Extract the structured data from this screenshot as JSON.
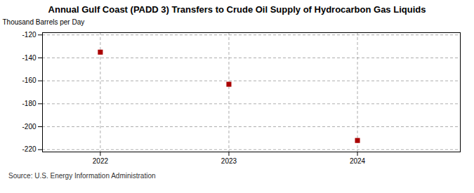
{
  "chart_data": {
    "type": "scatter",
    "title": "Annual Gulf Coast (PADD 3) Transfers to Crude Oil Supply of Hydrocarbon Gas Liquids",
    "ylabel": "Thousand Barrels per Day",
    "source": "Source: U.S. Energy Information Administration",
    "x": [
      2022,
      2023,
      2024
    ],
    "values": [
      -135,
      -163,
      -212
    ],
    "color": "#aa0000",
    "marker": "square",
    "xlim": [
      2021.55,
      2024.8
    ],
    "xticks": [
      2022,
      2023,
      2024
    ],
    "ylim": [
      -222,
      -118
    ],
    "yticks": [
      -120,
      -140,
      -160,
      -180,
      -200,
      -220
    ],
    "grid": true
  }
}
